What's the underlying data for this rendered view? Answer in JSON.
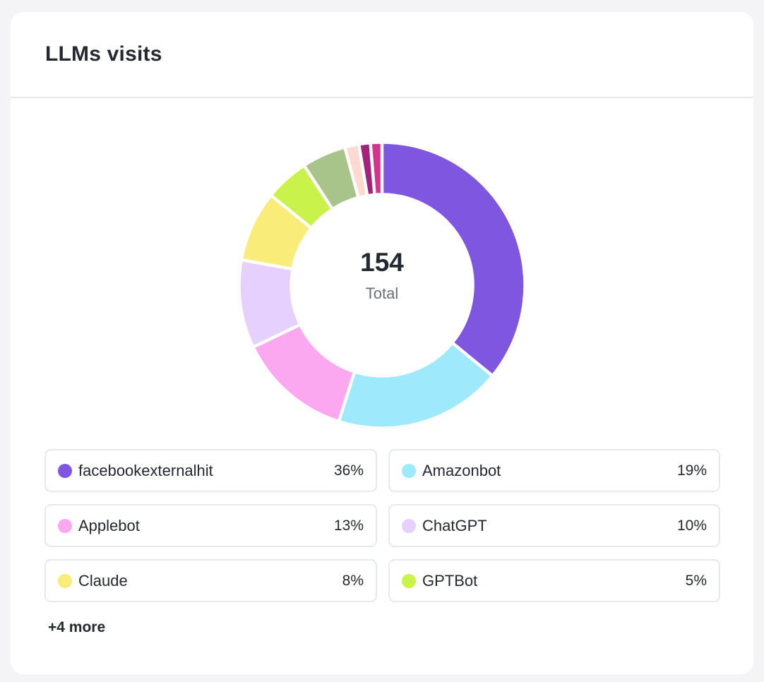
{
  "card": {
    "title": "LLMs visits",
    "more_label": "+4 more"
  },
  "chart_data": {
    "type": "pie",
    "center_value": "154",
    "center_label": "Total",
    "total": 154,
    "slices": [
      {
        "label": "facebookexternalhit",
        "value": 36,
        "percent_label": "36%",
        "color": "#7f56e0"
      },
      {
        "label": "Amazonbot",
        "value": 19,
        "percent_label": "19%",
        "color": "#9ee9fc"
      },
      {
        "label": "Applebot",
        "value": 13,
        "percent_label": "13%",
        "color": "#fca8f1"
      },
      {
        "label": "ChatGPT",
        "value": 10,
        "percent_label": "10%",
        "color": "#e6d0fd"
      },
      {
        "label": "Claude",
        "value": 8,
        "percent_label": "8%",
        "color": "#f9ec78"
      },
      {
        "label": "GPTBot",
        "value": 5,
        "percent_label": "5%",
        "color": "#c9f24b"
      },
      {
        "value": 5,
        "color": "#a9c48a"
      },
      {
        "value": 1.6,
        "color": "#fdd9d1"
      },
      {
        "value": 1.3,
        "color": "#a3237a"
      },
      {
        "value": 1.3,
        "color": "#d5348c"
      }
    ]
  }
}
